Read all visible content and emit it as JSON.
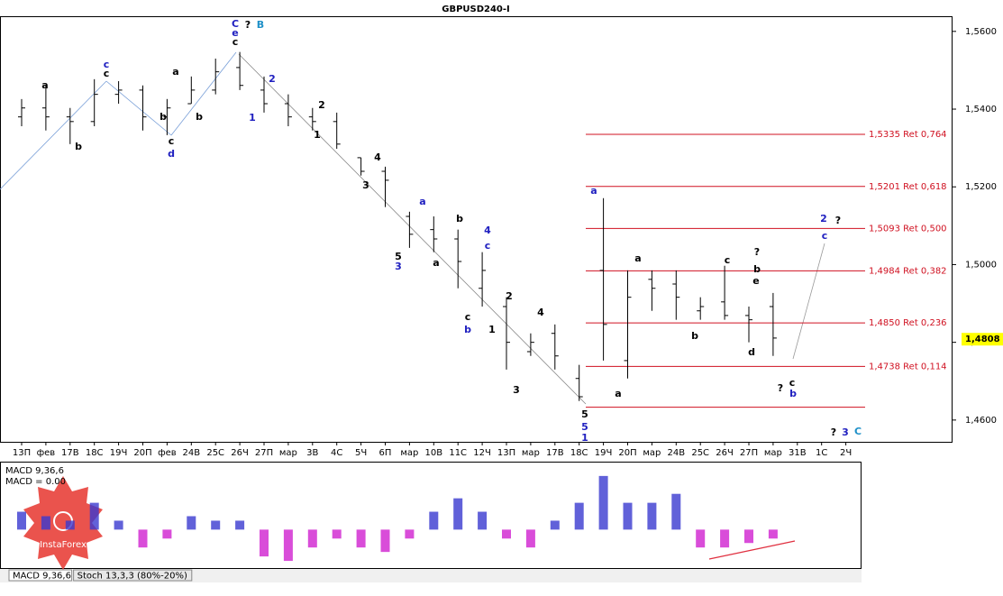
{
  "chart_data": {
    "type": "ohlc",
    "title": "GBPUSD240-I",
    "categories": [
      "13П",
      "фев",
      "17В",
      "18С",
      "19Ч",
      "20П",
      "фев",
      "24В",
      "25С",
      "26Ч",
      "27П",
      "мар",
      "3В",
      "4С",
      "5Ч",
      "6П",
      "мар",
      "10В",
      "11С",
      "12Ч",
      "13П",
      "мар",
      "17В",
      "18С",
      "19Ч",
      "20П",
      "мар",
      "24В",
      "25С",
      "26Ч",
      "27П",
      "мар",
      "31В",
      "1С",
      "2Ч"
    ],
    "open": [
      1.538,
      1.5403,
      1.538,
      1.5368,
      1.5438,
      1.5449,
      1.538,
      1.5414,
      1.5449,
      1.5507,
      1.5449,
      1.5414,
      1.538,
      1.5368,
      1.5275,
      1.524,
      1.5124,
      1.509,
      1.5066,
      1.4939,
      1.4892,
      1.4776,
      1.4823,
      1.4707,
      1.4985,
      1.4753,
      1.4962,
      1.495,
      1.4881,
      1.4904,
      1.4869,
      1.4892,
      null,
      null,
      null
    ],
    "high": [
      1.5426,
      1.5461,
      1.5403,
      1.5477,
      1.5472,
      1.5461,
      1.5426,
      1.5484,
      1.553,
      1.5547,
      1.5484,
      1.5438,
      1.5403,
      1.5391,
      1.5275,
      1.5252,
      1.5136,
      1.5124,
      1.509,
      1.5032,
      1.4916,
      1.4823,
      1.4846,
      1.4742,
      1.5171,
      1.4985,
      1.4985,
      1.4985,
      1.4916,
      1.4997,
      1.4892,
      1.4927,
      null,
      null,
      null
    ],
    "low": [
      1.5356,
      1.5345,
      1.531,
      1.5356,
      1.5414,
      1.5345,
      1.5333,
      1.5414,
      1.5438,
      1.5449,
      1.5391,
      1.5356,
      1.5345,
      1.5298,
      1.5229,
      1.5148,
      1.5043,
      1.5032,
      1.4939,
      1.4892,
      1.473,
      1.4765,
      1.473,
      1.4649,
      1.4753,
      1.4707,
      1.4881,
      1.4858,
      1.4858,
      1.4858,
      1.48,
      1.4765,
      null,
      null,
      null
    ],
    "close": [
      1.5403,
      1.538,
      1.5368,
      1.5438,
      1.5449,
      1.538,
      1.5403,
      1.5449,
      1.5496,
      1.5461,
      1.5414,
      1.538,
      1.5368,
      1.531,
      1.524,
      1.5217,
      1.5078,
      1.5066,
      1.5008,
      1.4985,
      1.48,
      1.48,
      1.4765,
      1.466,
      1.4846,
      1.4916,
      1.4939,
      1.4916,
      1.4892,
      1.4869,
      1.4858,
      1.4811,
      null,
      null,
      null
    ],
    "color": "#000000",
    "ylim": [
      1.4544,
      1.5639
    ],
    "yticks": [
      {
        "value": 1.46,
        "label": "1,4600"
      },
      {
        "value": 1.48,
        "label": "1,4800"
      },
      {
        "value": 1.5,
        "label": "1,5000"
      },
      {
        "value": 1.52,
        "label": "1,5200"
      },
      {
        "value": 1.54,
        "label": "1,5400"
      },
      {
        "value": 1.56,
        "label": "1,5600"
      }
    ],
    "current_price": {
      "value": 1.4808,
      "label": "1,4808"
    },
    "levels": [
      {
        "value": 1.5335,
        "label": "1,5335 Ret 0,764"
      },
      {
        "value": 1.5201,
        "label": "1,5201 Ret 0,618"
      },
      {
        "value": 1.5093,
        "label": "1,5093 Ret 0,500"
      },
      {
        "value": 1.4984,
        "label": "1,4984 Ret 0,382"
      },
      {
        "value": 1.485,
        "label": "1,4850 Ret 0,236"
      },
      {
        "value": 1.4738,
        "label": "1,4738 Ret 0,114"
      },
      {
        "value": 1.4633,
        "label": null
      }
    ],
    "level_color": "#d01020",
    "annotations": [
      {
        "text": "C",
        "color": "#2020c0"
      },
      {
        "text": "?",
        "color": "#000000"
      },
      {
        "text": "B",
        "color": "#1e90c8"
      },
      {
        "text": "e",
        "color": "#2020c0"
      },
      {
        "text": "c",
        "color": "#000000"
      },
      {
        "text": "c",
        "color": "#2020c0"
      },
      {
        "text": "c",
        "color": "#000000"
      },
      {
        "text": "a",
        "color": "#000000"
      },
      {
        "text": "b",
        "color": "#000000"
      },
      {
        "text": "a",
        "color": "#000000"
      },
      {
        "text": "b",
        "color": "#000000"
      },
      {
        "text": "c",
        "color": "#000000"
      },
      {
        "text": "d",
        "color": "#2020c0"
      },
      {
        "text": "b",
        "color": "#000000"
      },
      {
        "text": "2",
        "color": "#2020c0"
      },
      {
        "text": "1",
        "color": "#2020c0"
      },
      {
        "text": "2",
        "color": "#000000"
      },
      {
        "text": "1",
        "color": "#000000"
      },
      {
        "text": "4",
        "color": "#000000"
      },
      {
        "text": "3",
        "color": "#000000"
      },
      {
        "text": "a",
        "color": "#2020c0"
      },
      {
        "text": "b",
        "color": "#000000"
      },
      {
        "text": "a",
        "color": "#000000"
      },
      {
        "text": "5",
        "color": "#000000"
      },
      {
        "text": "3",
        "color": "#2020c0"
      },
      {
        "text": "4",
        "color": "#2020c0"
      },
      {
        "text": "c",
        "color": "#2020c0"
      },
      {
        "text": "c",
        "color": "#000000"
      },
      {
        "text": "b",
        "color": "#2020c0"
      },
      {
        "text": "2",
        "color": "#000000"
      },
      {
        "text": "1",
        "color": "#000000"
      },
      {
        "text": "4",
        "color": "#000000"
      },
      {
        "text": "3",
        "color": "#000000"
      },
      {
        "text": "5",
        "color": "#000000"
      },
      {
        "text": "5",
        "color": "#2020c0"
      },
      {
        "text": "1",
        "color": "#2020c0"
      },
      {
        "text": "a",
        "color": "#2020c0"
      },
      {
        "text": "a",
        "color": "#000000"
      },
      {
        "text": "a",
        "color": "#000000"
      },
      {
        "text": "b",
        "color": "#000000"
      },
      {
        "text": "c",
        "color": "#000000"
      },
      {
        "text": "?",
        "color": "#000000"
      },
      {
        "text": "b",
        "color": "#000000"
      },
      {
        "text": "e",
        "color": "#000000"
      },
      {
        "text": "d",
        "color": "#000000"
      },
      {
        "text": "?",
        "color": "#000000"
      },
      {
        "text": "c",
        "color": "#000000"
      },
      {
        "text": "b",
        "color": "#2020c0"
      },
      {
        "text": "2",
        "color": "#2020c0"
      },
      {
        "text": "?",
        "color": "#000000"
      },
      {
        "text": "c",
        "color": "#2020c0"
      },
      {
        "text": "?",
        "color": "#000000"
      },
      {
        "text": "3",
        "color": "#2020c0"
      },
      {
        "text": "C",
        "color": "#1e90c8"
      }
    ],
    "indicator": {
      "type": "bar",
      "label": "MACD 9,36,6",
      "value_label": "MACD = 0.00",
      "values": [
        0.002,
        0.0015,
        0.001,
        0.003,
        0.001,
        -0.002,
        -0.001,
        0.0015,
        0.001,
        0.001,
        -0.003,
        -0.0035,
        -0.002,
        -0.001,
        -0.002,
        -0.0025,
        -0.001,
        0.002,
        0.0035,
        0.002,
        -0.001,
        -0.002,
        0.001,
        0.003,
        0.006,
        0.003,
        0.003,
        0.004,
        -0.002,
        -0.002,
        -0.0015,
        -0.001,
        null,
        null,
        null
      ],
      "positive_color": "#3a3ad0",
      "negative_color": "#d020d0",
      "ylim": [
        -0.0043,
        0.0075
      ]
    },
    "tabs": [
      "MACD 9,36,6",
      "Stoch 13,3,3 (80%-20%)"
    ],
    "logo": "InstaForex"
  }
}
